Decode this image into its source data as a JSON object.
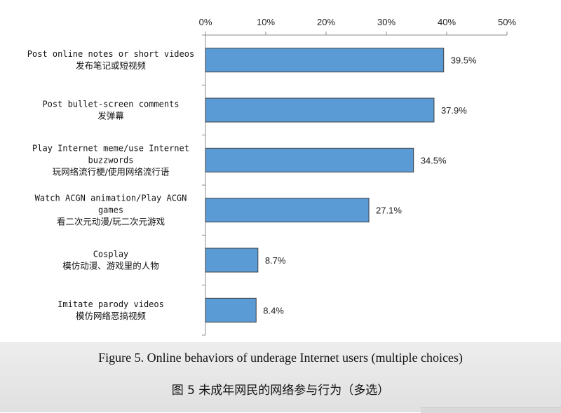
{
  "chart_data": {
    "type": "bar",
    "orientation": "horizontal",
    "categories": [
      {
        "en": [
          "Post online notes or short videos"
        ],
        "zh": "发布笔记或短视频"
      },
      {
        "en": [
          "Post bullet-screen comments"
        ],
        "zh": "发弹幕"
      },
      {
        "en": [
          "Play Internet meme/use Internet",
          "buzzwords"
        ],
        "zh": "玩网络流行梗/使用网络流行语"
      },
      {
        "en": [
          "Watch ACGN animation/Play ACGN",
          "games"
        ],
        "zh": "看二次元动漫/玩二次元游戏"
      },
      {
        "en": [
          "Cosplay"
        ],
        "zh": "模仿动漫、游戏里的人物"
      },
      {
        "en": [
          "Imitate parody videos"
        ],
        "zh": "模仿网络恶搞视频"
      }
    ],
    "values": [
      39.5,
      37.9,
      34.5,
      27.1,
      8.7,
      8.4
    ],
    "value_labels": [
      "39.5%",
      "37.9%",
      "34.5%",
      "27.1%",
      "8.7%",
      "8.4%"
    ],
    "xlim": [
      0,
      50
    ],
    "xticks": [
      "0%",
      "10%",
      "20%",
      "30%",
      "40%",
      "50%"
    ],
    "x_axis_position": "top",
    "grid": false,
    "legend": "none",
    "bar_color": "#5b9bd5",
    "bar_edge_color": "#3f3f3f"
  },
  "captions": {
    "en": "Figure 5. Online behaviors of underage Internet users (multiple choices)",
    "zh": "图 5 未成年网民的网络参与行为（多选）"
  }
}
